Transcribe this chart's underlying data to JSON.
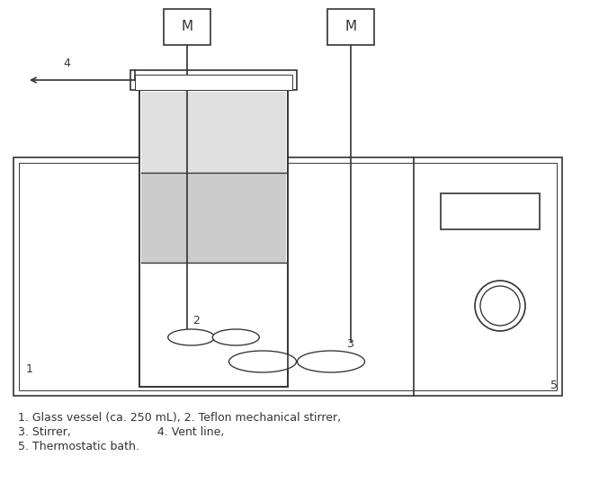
{
  "bg_color": "#ffffff",
  "line_color": "#333333",
  "light_gray": "#cccccc",
  "lighter_gray": "#e0e0e0",
  "figsize": [
    6.66,
    5.37
  ],
  "dpi": 100,
  "caption_line1": "1. Glass vessel (ca. 250 mL), 2. Teflon mechanical stirrer,",
  "caption_line2": "3. Stirrer,                        4. Vent line,",
  "caption_line3": "5. Thermostatic bath."
}
